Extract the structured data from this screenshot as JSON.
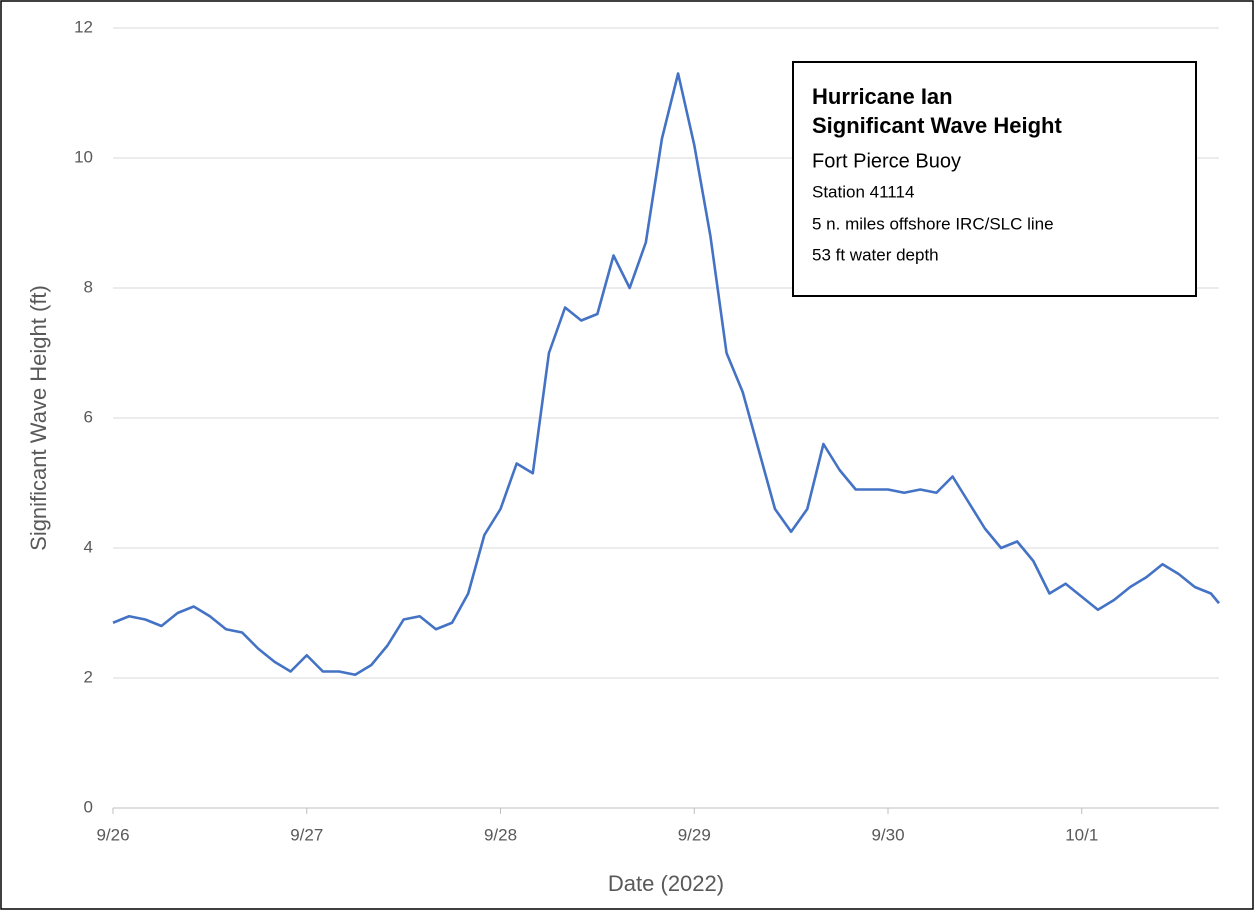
{
  "chart_data": {
    "type": "line",
    "annotation": [
      "Hurricane Ian",
      "Significant Wave Height",
      "Fort Pierce Buoy",
      "Station 41114",
      "5 n. miles offshore IRC/SLC line",
      "53 ft water depth"
    ],
    "x_label": "Date (2022)",
    "y_label": "Significant Wave Height (ft)",
    "x": [
      0,
      2,
      4,
      6,
      8,
      10,
      12,
      14,
      16,
      18,
      20,
      22,
      24,
      26,
      28,
      30,
      32,
      34,
      36,
      38,
      40,
      42,
      44,
      46,
      48,
      50,
      52,
      54,
      56,
      58,
      60,
      62,
      64,
      66,
      68,
      70,
      72,
      74,
      76,
      78,
      80,
      82,
      84,
      86,
      88,
      90,
      92,
      94,
      96,
      98,
      100,
      102,
      104,
      106,
      108,
      110,
      112,
      114,
      116,
      118,
      120,
      122,
      124,
      126,
      128,
      130,
      132,
      134,
      136,
      137
    ],
    "series": [
      {
        "name": "Significant Wave Height",
        "color": "#4472c4",
        "values": [
          2.85,
          2.95,
          2.9,
          2.8,
          3.0,
          3.1,
          2.95,
          2.75,
          2.7,
          2.45,
          2.25,
          2.1,
          2.35,
          2.1,
          2.1,
          2.05,
          2.2,
          2.5,
          2.9,
          2.95,
          2.75,
          2.85,
          3.3,
          4.2,
          4.6,
          5.3,
          5.15,
          7.0,
          7.7,
          7.5,
          7.6,
          8.5,
          8.0,
          8.7,
          10.3,
          11.3,
          10.2,
          8.8,
          7.0,
          6.4,
          5.5,
          4.6,
          4.25,
          4.6,
          5.6,
          5.2,
          4.9,
          4.9,
          4.9,
          4.85,
          4.9,
          4.85,
          5.1,
          4.7,
          4.3,
          4.0,
          4.1,
          3.8,
          3.3,
          3.45,
          3.25,
          3.05,
          3.2,
          3.4,
          3.55,
          3.75,
          3.6,
          3.4,
          3.3,
          3.15
        ]
      }
    ],
    "xlim": [
      0,
      137
    ],
    "xticks": [
      {
        "value": 0,
        "label": "9/26"
      },
      {
        "value": 24,
        "label": "9/27"
      },
      {
        "value": 48,
        "label": "9/28"
      },
      {
        "value": 72,
        "label": "9/29"
      },
      {
        "value": 96,
        "label": "9/30"
      },
      {
        "value": 120,
        "label": "10/1"
      }
    ],
    "ylim": [
      0,
      12
    ],
    "yticks": [
      0,
      2,
      4,
      6,
      8,
      10,
      12
    ],
    "grid": true
  }
}
